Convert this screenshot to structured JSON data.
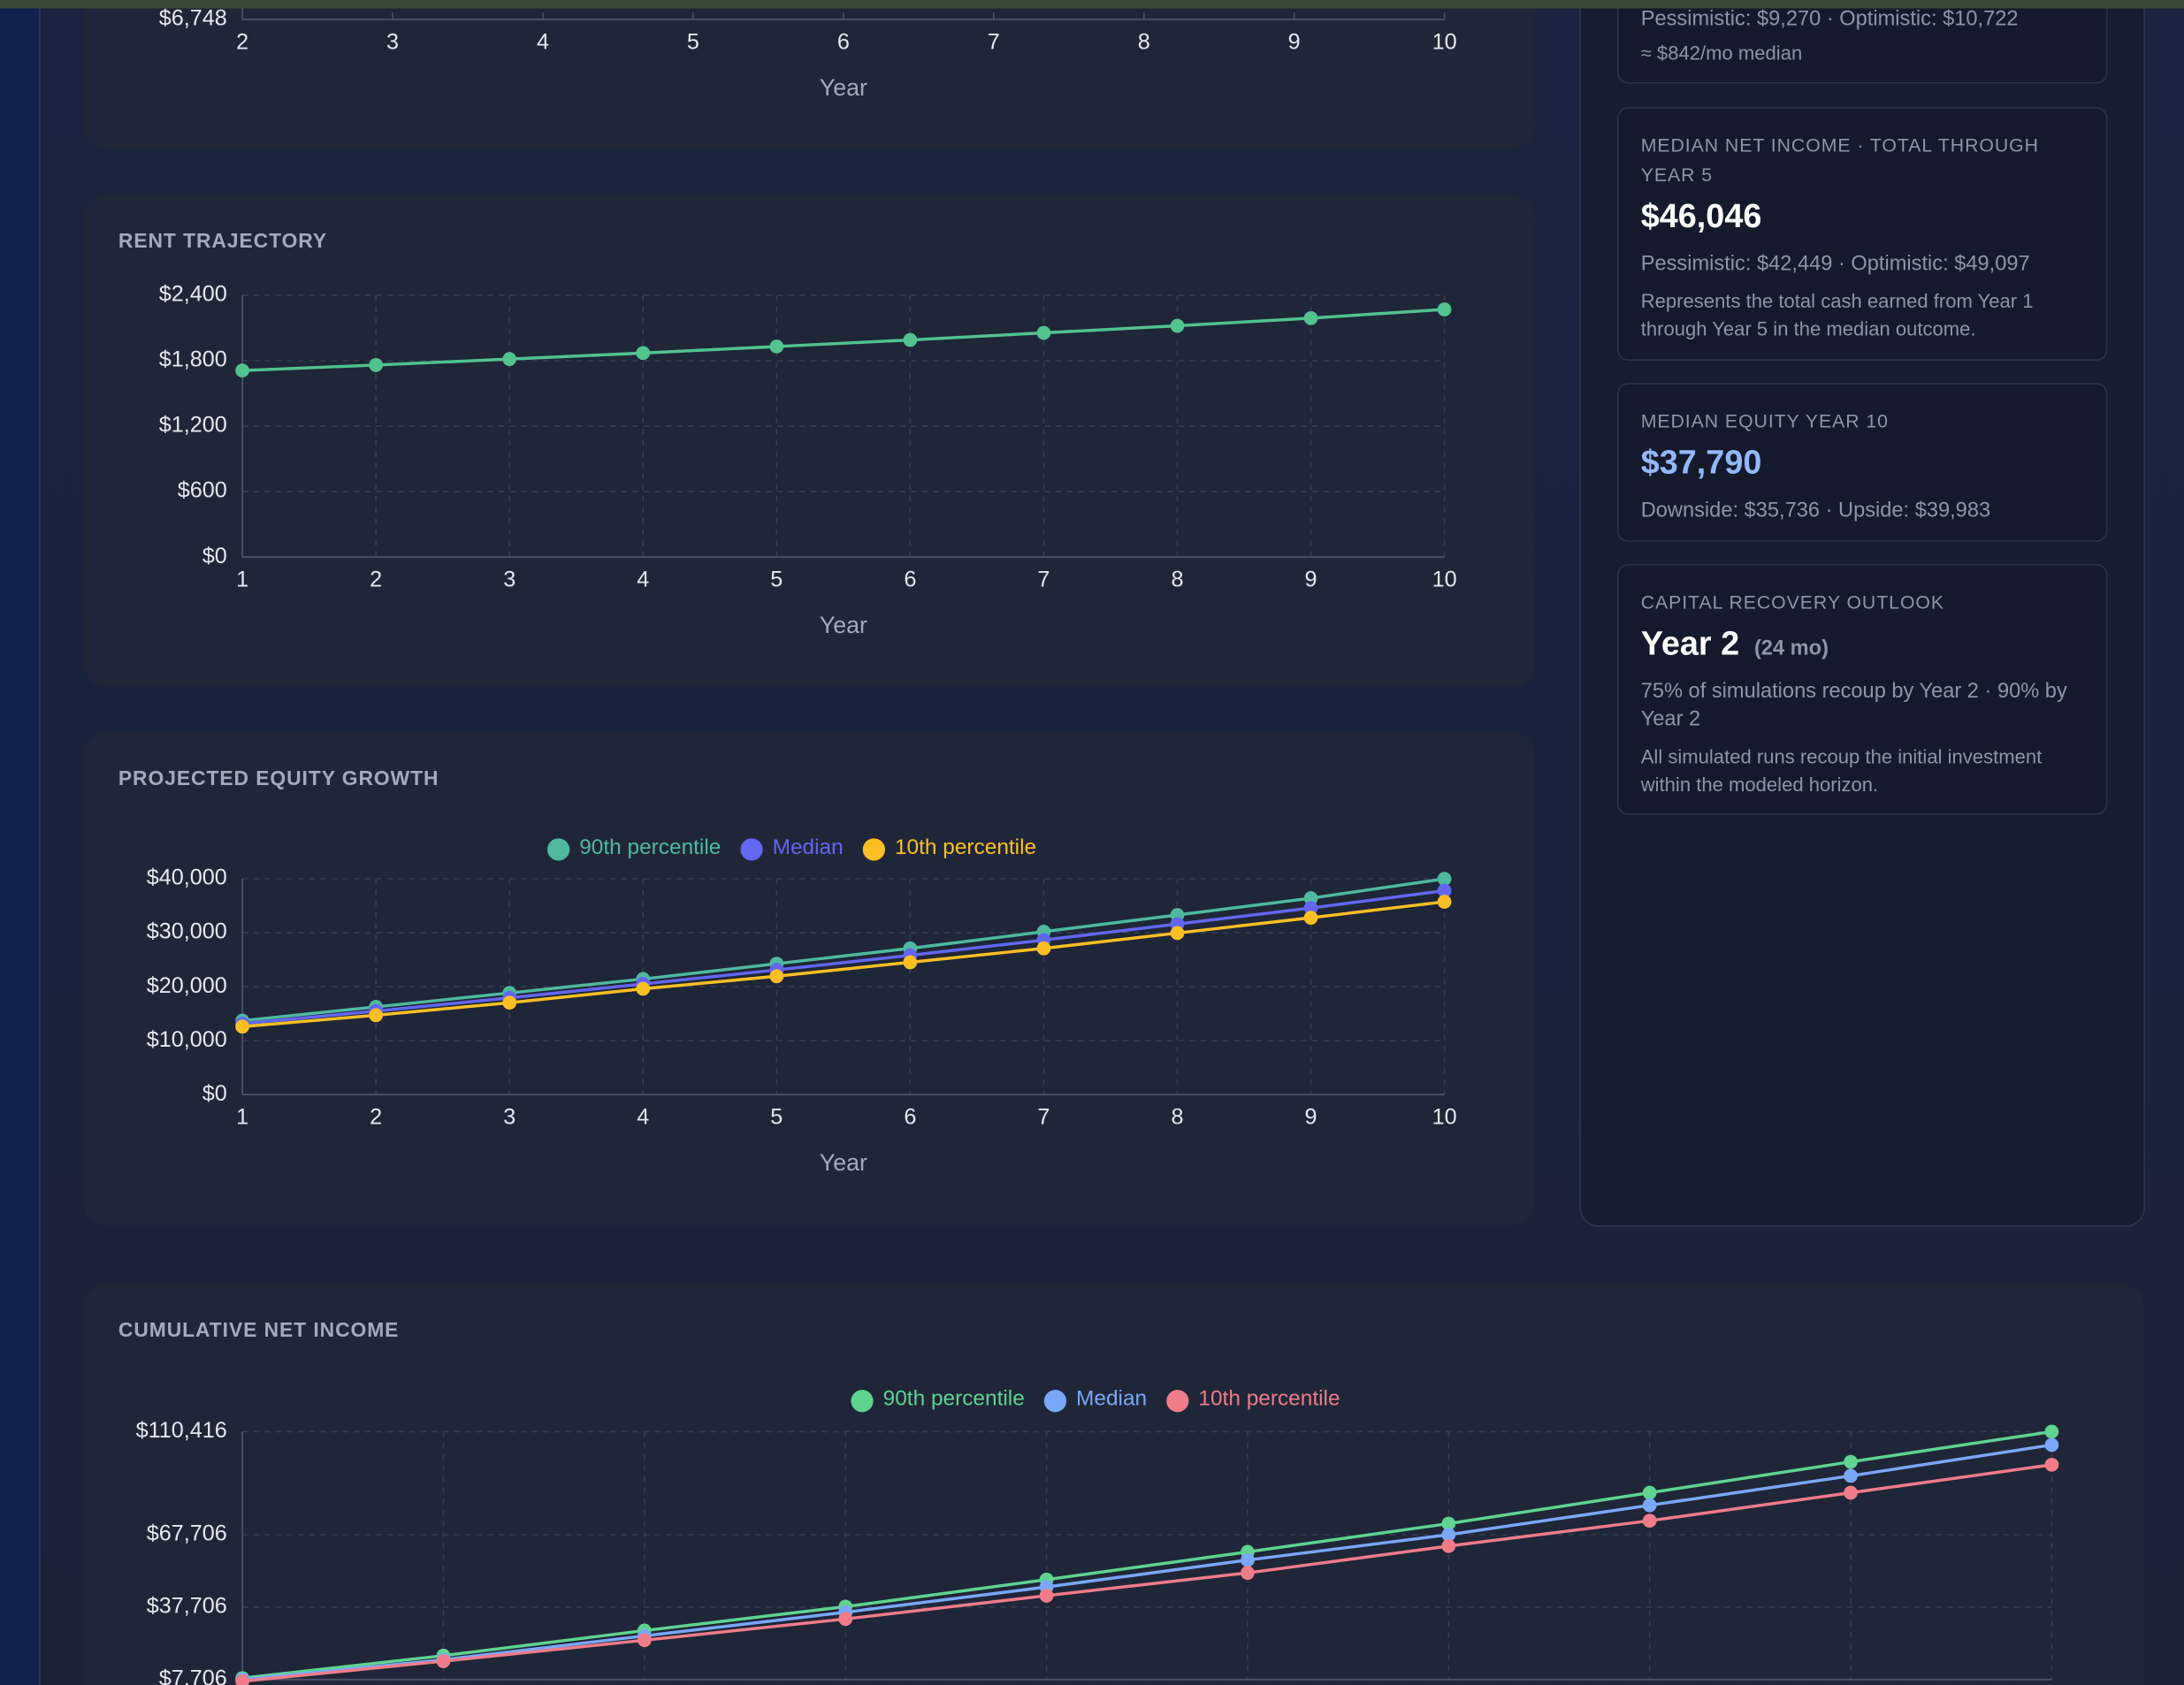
{
  "chart_data": [
    {
      "type": "line",
      "x_label": "Year",
      "xlim": [
        2,
        10
      ],
      "xticks": [
        2,
        3,
        4,
        5,
        6,
        7,
        8,
        9,
        10
      ],
      "yticks": [
        {
          "value": 6748,
          "label": "$6,748"
        }
      ],
      "grid": false
    },
    {
      "type": "line",
      "title": "RENT TRAJECTORY",
      "x_label": "Year",
      "x": [
        1,
        2,
        3,
        4,
        5,
        6,
        7,
        8,
        9,
        10
      ],
      "values": [
        1710,
        1760,
        1815,
        1870,
        1930,
        1990,
        2055,
        2120,
        2190,
        2270
      ],
      "color": "#52c28f",
      "xlim": [
        1,
        10
      ],
      "xticks": [
        1,
        2,
        3,
        4,
        5,
        6,
        7,
        8,
        9,
        10
      ],
      "ylim": [
        0,
        2400
      ],
      "yticks": [
        {
          "value": 0,
          "label": "$0"
        },
        {
          "value": 600,
          "label": "$600"
        },
        {
          "value": 1200,
          "label": "$1,200"
        },
        {
          "value": 1800,
          "label": "$1,800"
        },
        {
          "value": 2400,
          "label": "$2,400"
        }
      ],
      "grid": true
    },
    {
      "type": "line",
      "title": "PROJECTED EQUITY GROWTH",
      "x_label": "Year",
      "legend": "top",
      "x": [
        1,
        2,
        3,
        4,
        5,
        6,
        7,
        8,
        9,
        10
      ],
      "series": [
        {
          "name": "90th percentile",
          "color": "#4fb9a0",
          "values": [
            13700,
            16260,
            18840,
            21420,
            24260,
            27100,
            30190,
            33290,
            36390,
            39983
          ]
        },
        {
          "name": "Median",
          "color": "#6366f1",
          "values": [
            13150,
            15480,
            17930,
            20510,
            23100,
            25810,
            28640,
            31610,
            34580,
            37790
          ]
        },
        {
          "name": "10th percentile",
          "color": "#fbbf24",
          "values": [
            12600,
            14710,
            17030,
            19610,
            21940,
            24520,
            27100,
            29940,
            32770,
            35736
          ]
        }
      ],
      "xlim": [
        1,
        10
      ],
      "xticks": [
        1,
        2,
        3,
        4,
        5,
        6,
        7,
        8,
        9,
        10
      ],
      "ylim": [
        0,
        40000
      ],
      "yticks": [
        {
          "value": 0,
          "label": "$0"
        },
        {
          "value": 10000,
          "label": "$10,000"
        },
        {
          "value": 20000,
          "label": "$20,000"
        },
        {
          "value": 30000,
          "label": "$30,000"
        },
        {
          "value": 40000,
          "label": "$40,000"
        }
      ],
      "grid": true
    },
    {
      "type": "line",
      "title": "CUMULATIVE NET INCOME",
      "legend": "top",
      "x": [
        1,
        2,
        3,
        4,
        5,
        6,
        7,
        8,
        9,
        10
      ],
      "series": [
        {
          "name": "90th percentile",
          "color": "#5fd390",
          "values": [
            8300,
            17600,
            28000,
            37900,
            49097,
            60600,
            72300,
            85100,
            97900,
            110416
          ]
        },
        {
          "name": "Median",
          "color": "#7aa7f7",
          "values": [
            7706,
            15900,
            25800,
            35600,
            46046,
            57200,
            67700,
            79900,
            92100,
            104900
          ]
        },
        {
          "name": "10th percentile",
          "color": "#f07c8a",
          "values": [
            7000,
            15300,
            24000,
            32800,
            42449,
            51900,
            63000,
            73500,
            85100,
            96700
          ]
        }
      ],
      "xlim": [
        1,
        10
      ],
      "ylim": [
        7706,
        110416
      ],
      "yticks": [
        {
          "value": 7706,
          "label": "$7,706"
        },
        {
          "value": 37706,
          "label": "$37,706"
        },
        {
          "value": 67706,
          "label": "$67,706"
        },
        {
          "value": 110416,
          "label": "$110,416"
        }
      ],
      "grid": true
    }
  ],
  "sidebar": {
    "cards": [
      {
        "lines": [
          "Pessimistic: $9,270 · Optimistic: $10,722",
          "≈ $842/mo median"
        ]
      },
      {
        "label": "MEDIAN NET INCOME · TOTAL THROUGH YEAR 5",
        "value": "$46,046",
        "detail": "Pessimistic: $42,449 · Optimistic: $49,097",
        "note": "Represents the total cash earned from Year 1 through Year 5 in the median outcome."
      },
      {
        "label": "MEDIAN EQUITY YEAR 10",
        "value": "$37,790",
        "detail": "Downside: $35,736 · Upside: $39,983"
      },
      {
        "label": "CAPITAL RECOVERY OUTLOOK",
        "value": "Year 2",
        "value_note": "(24 mo)",
        "detail": "75% of simulations recoup by Year 2 · 90% by Year 2",
        "note": "All simulated runs recoup the initial investment within the modeled horizon."
      }
    ]
  }
}
